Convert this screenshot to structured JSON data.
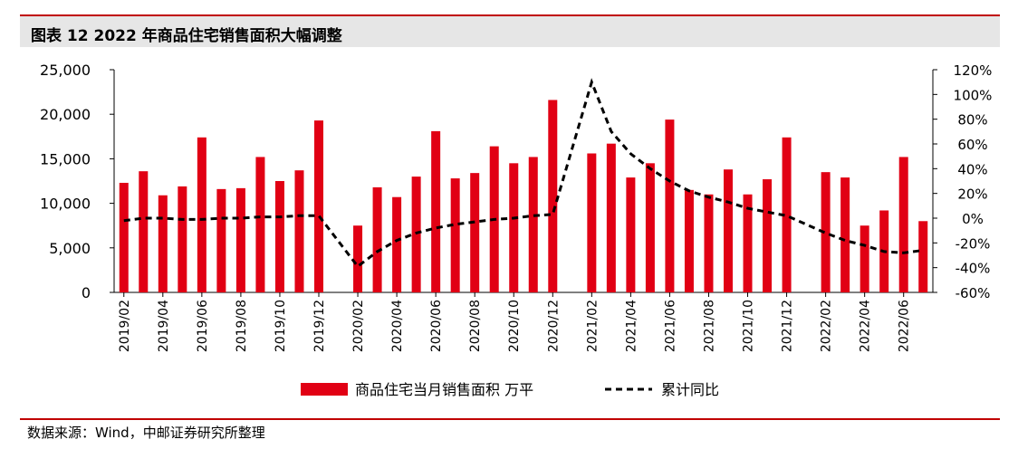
{
  "figure": {
    "title": "图表 12  2022 年商品住宅销售面积大幅调整",
    "source": "数据来源：Wind，中邮证券研究所整理"
  },
  "colors": {
    "bar": "#e10014",
    "line": "#000000",
    "accent": "#c00000",
    "title_bg": "#e6e6e6"
  },
  "chart_data": {
    "type": "bar",
    "categories": [
      "2019/02",
      "2019/03",
      "2019/04",
      "2019/05",
      "2019/06",
      "2019/07",
      "2019/08",
      "2019/09",
      "2019/10",
      "2019/11",
      "2019/12",
      "2020/01",
      "2020/02",
      "2020/03",
      "2020/04",
      "2020/05",
      "2020/06",
      "2020/07",
      "2020/08",
      "2020/09",
      "2020/10",
      "2020/11",
      "2020/12",
      "2021/01",
      "2021/02",
      "2021/03",
      "2021/04",
      "2021/05",
      "2021/06",
      "2021/07",
      "2021/08",
      "2021/09",
      "2021/10",
      "2021/11",
      "2021/12",
      "2022/01",
      "2022/02",
      "2022/03",
      "2022/04",
      "2022/05",
      "2022/06",
      "2022/07"
    ],
    "x_tick_labels": [
      "2019/02",
      "2019/04",
      "2019/06",
      "2019/08",
      "2019/10",
      "2019/12",
      "2020/02",
      "2020/04",
      "2020/06",
      "2020/08",
      "2020/10",
      "2020/12",
      "2021/02",
      "2021/04",
      "2021/06",
      "2021/08",
      "2021/10",
      "2021/12",
      "2022/02",
      "2022/04",
      "2022/06"
    ],
    "series": [
      {
        "name": "商品住宅当月销售面积 万平",
        "type": "bar",
        "axis": "left",
        "values": [
          12300,
          13600,
          10900,
          11900,
          17400,
          11600,
          11700,
          15200,
          12500,
          13700,
          19300,
          null,
          7500,
          11800,
          10700,
          13000,
          18100,
          12800,
          13400,
          16400,
          14500,
          15200,
          21600,
          null,
          15600,
          16700,
          12900,
          14500,
          19400,
          11500,
          11000,
          13800,
          11000,
          12700,
          17400,
          null,
          13500,
          12900,
          7500,
          9200,
          15200,
          8000
        ]
      },
      {
        "name": "累计同比",
        "type": "line",
        "axis": "right",
        "style": "dashed",
        "values": [
          -2,
          0,
          0,
          -1,
          -1,
          0,
          0,
          1,
          1,
          2,
          2,
          null,
          -39,
          -27,
          -18,
          -12,
          -8,
          -5,
          -3,
          -1,
          0,
          2,
          3,
          null,
          110,
          70,
          52,
          40,
          30,
          22,
          17,
          13,
          8,
          5,
          2,
          null,
          -12,
          -18,
          -22,
          -27,
          -28,
          -26
        ]
      }
    ],
    "y_left": {
      "min": 0,
      "max": 25000,
      "ticks": [
        "0",
        "5,000",
        "10,000",
        "15,000",
        "20,000",
        "25,000"
      ]
    },
    "y_right": {
      "min": -60,
      "max": 120,
      "ticks": [
        "-60%",
        "-40%",
        "-20%",
        "0%",
        "20%",
        "40%",
        "60%",
        "80%",
        "100%",
        "120%"
      ]
    },
    "legend": {
      "position": "bottom-center"
    },
    "grid": false
  }
}
